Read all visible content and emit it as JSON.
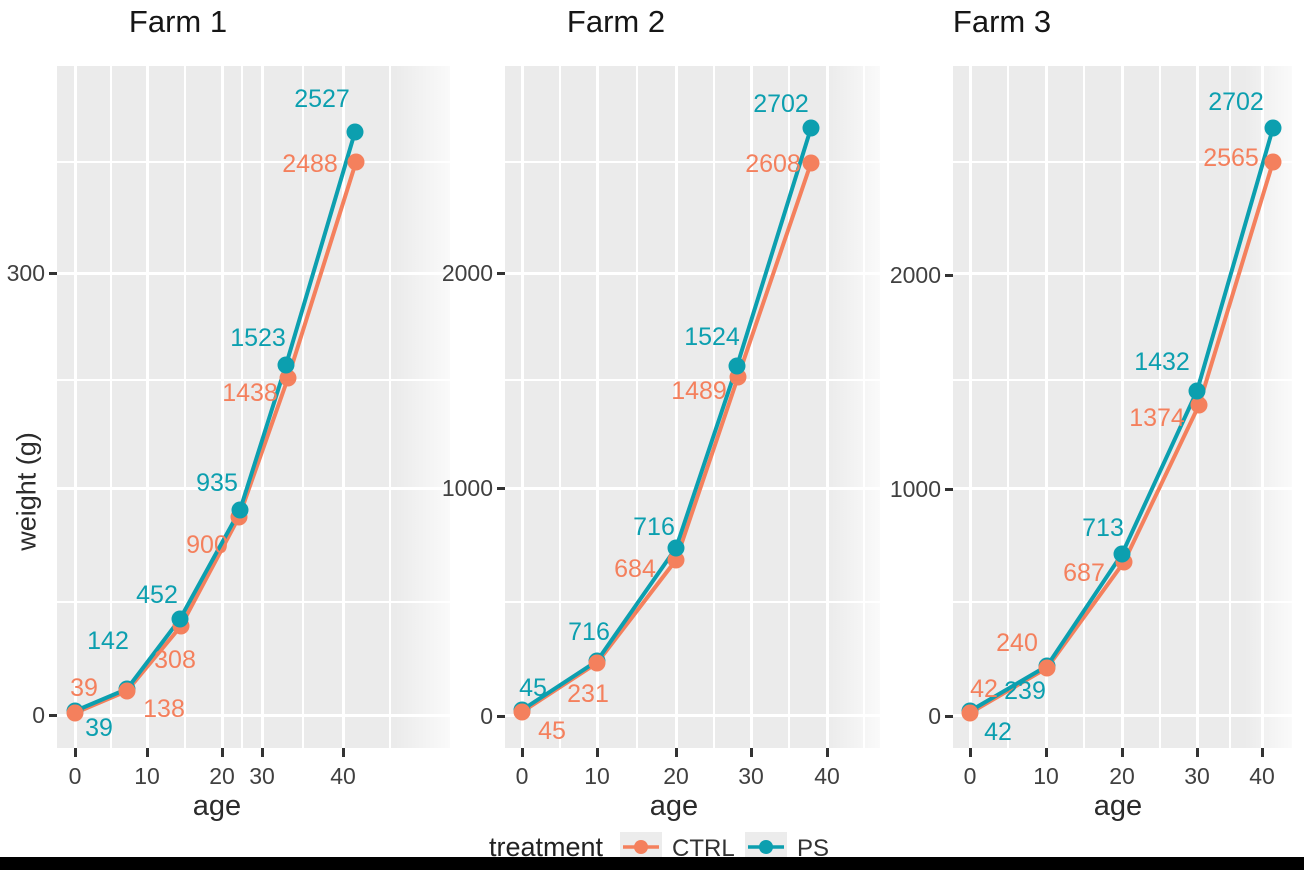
{
  "figure": {
    "x_axis_title": "age",
    "y_axis_title": "weight (g)",
    "colors": {
      "panel_background": "#ebebeb",
      "gridline": "#ffffff",
      "ctrl": "#F4805D",
      "ps": "#0C9FAF"
    },
    "legend": {
      "title": "treatment",
      "items": [
        {
          "label": "CTRL",
          "color": "#F4805D"
        },
        {
          "label": "PS",
          "color": "#0C9FAF"
        }
      ]
    }
  },
  "chart_data": {
    "type": "line",
    "xlabel": "age",
    "ylabel": "weight (g)",
    "legend_position": "bottom",
    "grid": true,
    "facets": [
      {
        "title": "Farm 1",
        "x_tick_labels": [
          "0",
          "10",
          "20",
          "30",
          "40"
        ],
        "y_tick_labels": [
          "300",
          "0"
        ],
        "series": [
          {
            "name": "CTRL",
            "x": [
              0,
              7,
              14,
              22,
              33,
              42
            ],
            "values": [
              39,
              138,
              308,
              900,
              1438,
              2488
            ]
          },
          {
            "name": "PS",
            "x": [
              0,
              7,
              14,
              22,
              33,
              42
            ],
            "values": [
              39,
              142,
              452,
              935,
              1523,
              2527
            ]
          }
        ]
      },
      {
        "title": "Farm 2",
        "x_tick_labels": [
          "0",
          "10",
          "20",
          "30",
          "40"
        ],
        "y_tick_labels": [
          "2000",
          "1000",
          "0"
        ],
        "series": [
          {
            "name": "CTRL",
            "x": [
              0,
              10,
              20,
              28,
              38
            ],
            "values": [
              45,
              231,
              684,
              1489,
              2608
            ]
          },
          {
            "name": "PS",
            "x": [
              0,
              10,
              20,
              28,
              38
            ],
            "values": [
              45,
              716,
              716,
              1524,
              2702
            ]
          }
        ]
      },
      {
        "title": "Farm 3",
        "x_tick_labels": [
          "0",
          "10",
          "20",
          "30",
          "40"
        ],
        "y_tick_labels": [
          "2000",
          "1000",
          "0"
        ],
        "series": [
          {
            "name": "CTRL",
            "x": [
              0,
              10,
              20,
              30,
              41
            ],
            "values": [
              42,
              240,
              687,
              1374,
              2565
            ]
          },
          {
            "name": "PS",
            "x": [
              0,
              10,
              20,
              30,
              41
            ],
            "values": [
              42,
              239,
              713,
              1432,
              2702
            ]
          }
        ]
      }
    ]
  }
}
